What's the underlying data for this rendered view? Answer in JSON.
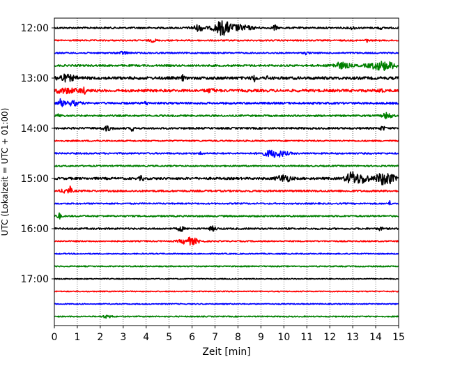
{
  "chart_data": {
    "type": "line",
    "title": "",
    "xlabel": "Zeit  [min]",
    "ylabel": "UTC (Lokalzeit = UTC + 01:00)",
    "xlim": [
      0,
      15
    ],
    "x_ticks": [
      0,
      1,
      2,
      3,
      4,
      5,
      6,
      7,
      8,
      9,
      10,
      11,
      12,
      13,
      14,
      15
    ],
    "y_tick_labels": [
      "12:00",
      "13:00",
      "14:00",
      "15:00",
      "16:00",
      "17:00"
    ],
    "grid": "vertical dotted",
    "trace_colors": [
      "#000000",
      "#ff0000",
      "#0000ff",
      "#008000"
    ],
    "traces_start": "12:00",
    "trace_interval_min": 15,
    "traces": [
      {
        "time": "12:00",
        "color": "#000000",
        "noise": 1.2,
        "events": [
          {
            "x": 6.3,
            "amp": 4,
            "w": 0.3
          },
          {
            "x": 7.3,
            "amp": 9,
            "w": 0.35
          },
          {
            "x": 8.0,
            "amp": 4,
            "w": 0.6
          },
          {
            "x": 9.6,
            "amp": 4,
            "w": 0.1
          },
          {
            "x": 13.0,
            "amp": 2,
            "w": 0.1
          },
          {
            "x": 14.2,
            "amp": 3,
            "w": 0.05
          }
        ]
      },
      {
        "time": "12:15",
        "color": "#ff0000",
        "noise": 1.0,
        "events": [
          {
            "x": 4.3,
            "amp": 2,
            "w": 0.15
          },
          {
            "x": 13.6,
            "amp": 3,
            "w": 0.05
          }
        ]
      },
      {
        "time": "12:30",
        "color": "#0000ff",
        "noise": 1.0,
        "events": [
          {
            "x": 3.0,
            "amp": 2,
            "w": 0.2
          },
          {
            "x": 11.0,
            "amp": 2,
            "w": 0.1
          }
        ]
      },
      {
        "time": "12:45",
        "color": "#008000",
        "noise": 1.3,
        "events": [
          {
            "x": 12.5,
            "amp": 4,
            "w": 0.4
          },
          {
            "x": 14.3,
            "amp": 6,
            "w": 0.6
          }
        ]
      },
      {
        "time": "13:00",
        "color": "#000000",
        "noise": 2.0,
        "events": [
          {
            "x": 0.5,
            "amp": 4,
            "w": 0.4
          },
          {
            "x": 5.6,
            "amp": 4,
            "w": 0.05
          },
          {
            "x": 8.7,
            "amp": 4,
            "w": 0.1
          },
          {
            "x": 9.3,
            "amp": 3,
            "w": 0.05
          }
        ]
      },
      {
        "time": "13:15",
        "color": "#ff0000",
        "noise": 1.8,
        "events": [
          {
            "x": 0.5,
            "amp": 3,
            "w": 0.6
          },
          {
            "x": 1.3,
            "amp": 3,
            "w": 0.15
          },
          {
            "x": 6.8,
            "amp": 2,
            "w": 0.2
          },
          {
            "x": 14.2,
            "amp": 3,
            "w": 0.1
          }
        ]
      },
      {
        "time": "13:30",
        "color": "#0000ff",
        "noise": 1.4,
        "events": [
          {
            "x": 0.3,
            "amp": 6,
            "w": 0.1
          },
          {
            "x": 0.8,
            "amp": 3,
            "w": 0.3
          },
          {
            "x": 4.0,
            "amp": 2,
            "w": 0.1
          }
        ]
      },
      {
        "time": "13:45",
        "color": "#008000",
        "noise": 1.2,
        "events": [
          {
            "x": 0.2,
            "amp": 2,
            "w": 0.1
          },
          {
            "x": 14.5,
            "amp": 4,
            "w": 0.2
          }
        ]
      },
      {
        "time": "14:00",
        "color": "#000000",
        "noise": 1.3,
        "events": [
          {
            "x": 2.3,
            "amp": 3,
            "w": 0.2
          },
          {
            "x": 3.4,
            "amp": 5,
            "w": 0.05
          },
          {
            "x": 14.3,
            "amp": 3,
            "w": 0.1
          }
        ]
      },
      {
        "time": "14:15",
        "color": "#ff0000",
        "noise": 1.0,
        "events": [
          {
            "x": 1.9,
            "amp": 2,
            "w": 0.05
          }
        ]
      },
      {
        "time": "14:30",
        "color": "#0000ff",
        "noise": 1.1,
        "events": [
          {
            "x": 6.4,
            "amp": 3,
            "w": 0.05
          },
          {
            "x": 9.6,
            "amp": 5,
            "w": 0.5
          }
        ]
      },
      {
        "time": "14:45",
        "color": "#008000",
        "noise": 1.0,
        "events": []
      },
      {
        "time": "15:00",
        "color": "#000000",
        "noise": 1.6,
        "events": [
          {
            "x": 3.8,
            "amp": 3,
            "w": 0.1
          },
          {
            "x": 10.0,
            "amp": 5,
            "w": 0.3
          },
          {
            "x": 13.0,
            "amp": 9,
            "w": 0.3
          },
          {
            "x": 13.5,
            "amp": 6,
            "w": 0.2
          },
          {
            "x": 14.4,
            "amp": 9,
            "w": 0.4
          }
        ]
      },
      {
        "time": "15:15",
        "color": "#ff0000",
        "noise": 1.3,
        "events": [
          {
            "x": 0.5,
            "amp": 3,
            "w": 0.2
          },
          {
            "x": 0.7,
            "amp": 5,
            "w": 0.05
          }
        ]
      },
      {
        "time": "15:30",
        "color": "#0000ff",
        "noise": 1.0,
        "events": [
          {
            "x": 14.6,
            "amp": 4,
            "w": 0.05
          }
        ]
      },
      {
        "time": "15:45",
        "color": "#008000",
        "noise": 1.1,
        "events": [
          {
            "x": 0.2,
            "amp": 4,
            "w": 0.1
          }
        ]
      },
      {
        "time": "16:00",
        "color": "#000000",
        "noise": 1.2,
        "events": [
          {
            "x": 5.5,
            "amp": 4,
            "w": 0.12
          },
          {
            "x": 6.9,
            "amp": 3,
            "w": 0.15
          },
          {
            "x": 14.2,
            "amp": 2,
            "w": 0.1
          }
        ]
      },
      {
        "time": "16:15",
        "color": "#ff0000",
        "noise": 0.9,
        "events": [
          {
            "x": 5.9,
            "amp": 5,
            "w": 0.4
          }
        ]
      },
      {
        "time": "16:30",
        "color": "#0000ff",
        "noise": 0.8,
        "events": []
      },
      {
        "time": "16:45",
        "color": "#008000",
        "noise": 0.8,
        "events": []
      },
      {
        "time": "17:00",
        "color": "#000000",
        "noise": 0.7,
        "events": []
      },
      {
        "time": "17:15",
        "color": "#ff0000",
        "noise": 0.7,
        "events": []
      },
      {
        "time": "17:30",
        "color": "#0000ff",
        "noise": 0.7,
        "events": []
      },
      {
        "time": "17:45",
        "color": "#008000",
        "noise": 0.8,
        "events": [
          {
            "x": 2.3,
            "amp": 2,
            "w": 0.2
          }
        ]
      }
    ]
  }
}
